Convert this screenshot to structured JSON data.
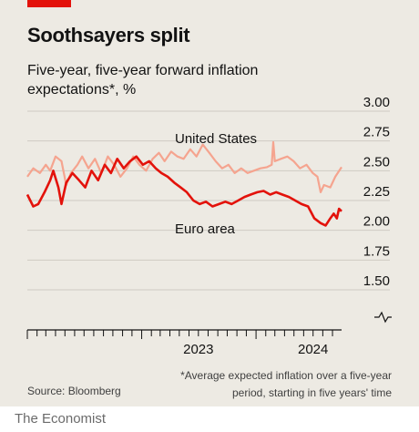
{
  "header": {
    "title": "Soothsayers split",
    "subtitle": "Five-year, five-year forward inflation expectations*, %"
  },
  "footer": {
    "source": "Source: Bloomberg",
    "footnote": "*Average expected inflation over a five-year period, starting in five years' time",
    "brand": "The Economist"
  },
  "colors": {
    "background": "#edeae3",
    "accent": "#e3120b",
    "us_line": "#f5a48f",
    "euro_line": "#e3120b",
    "grid": "#cfcbc3"
  },
  "chart_data": {
    "type": "line",
    "title": "Soothsayers split",
    "subtitle": "Five-year, five-year forward inflation expectations*, %",
    "xlabel": "",
    "ylabel": "",
    "x_ticks": [
      "2023",
      "2024"
    ],
    "y_ticks": [
      "3.00",
      "2.75",
      "2.50",
      "2.25",
      "2.00",
      "1.75",
      "1.50"
    ],
    "ylim": [
      1.5,
      3.0
    ],
    "xlim": [
      "2022-01-01",
      "2024-09-30"
    ],
    "grid": true,
    "axis_break_below": true,
    "series": [
      {
        "name": "United States",
        "color": "#f5a48f",
        "points": [
          [
            "2022-01-01",
            2.45
          ],
          [
            "2022-01-20",
            2.52
          ],
          [
            "2022-02-10",
            2.48
          ],
          [
            "2022-03-01",
            2.55
          ],
          [
            "2022-03-15",
            2.5
          ],
          [
            "2022-04-01",
            2.62
          ],
          [
            "2022-04-20",
            2.58
          ],
          [
            "2022-05-05",
            2.38
          ],
          [
            "2022-05-20",
            2.48
          ],
          [
            "2022-06-10",
            2.55
          ],
          [
            "2022-06-25",
            2.62
          ],
          [
            "2022-07-15",
            2.52
          ],
          [
            "2022-08-05",
            2.6
          ],
          [
            "2022-08-25",
            2.48
          ],
          [
            "2022-09-15",
            2.62
          ],
          [
            "2022-10-05",
            2.55
          ],
          [
            "2022-10-25",
            2.45
          ],
          [
            "2022-11-15",
            2.52
          ],
          [
            "2022-12-05",
            2.62
          ],
          [
            "2022-12-25",
            2.55
          ],
          [
            "2023-01-15",
            2.5
          ],
          [
            "2023-02-05",
            2.6
          ],
          [
            "2023-02-25",
            2.65
          ],
          [
            "2023-03-15",
            2.58
          ],
          [
            "2023-04-05",
            2.66
          ],
          [
            "2023-04-25",
            2.62
          ],
          [
            "2023-05-15",
            2.6
          ],
          [
            "2023-06-05",
            2.68
          ],
          [
            "2023-06-25",
            2.62
          ],
          [
            "2023-07-15",
            2.72
          ],
          [
            "2023-08-05",
            2.65
          ],
          [
            "2023-08-25",
            2.58
          ],
          [
            "2023-09-15",
            2.52
          ],
          [
            "2023-10-05",
            2.55
          ],
          [
            "2023-10-25",
            2.48
          ],
          [
            "2023-11-15",
            2.52
          ],
          [
            "2023-12-05",
            2.48
          ],
          [
            "2023-12-25",
            2.5
          ],
          [
            "2024-01-15",
            2.52
          ],
          [
            "2024-02-05",
            2.53
          ],
          [
            "2024-02-20",
            2.55
          ],
          [
            "2024-02-25",
            2.74
          ],
          [
            "2024-03-01",
            2.58
          ],
          [
            "2024-03-20",
            2.6
          ],
          [
            "2024-04-10",
            2.62
          ],
          [
            "2024-04-30",
            2.58
          ],
          [
            "2024-05-20",
            2.52
          ],
          [
            "2024-06-10",
            2.55
          ],
          [
            "2024-06-30",
            2.48
          ],
          [
            "2024-07-15",
            2.45
          ],
          [
            "2024-07-25",
            2.32
          ],
          [
            "2024-08-05",
            2.38
          ],
          [
            "2024-08-25",
            2.36
          ],
          [
            "2024-09-10",
            2.45
          ],
          [
            "2024-09-30",
            2.53
          ]
        ]
      },
      {
        "name": "Euro area",
        "color": "#e3120b",
        "points": [
          [
            "2022-01-01",
            2.3
          ],
          [
            "2022-01-20",
            2.2
          ],
          [
            "2022-02-05",
            2.22
          ],
          [
            "2022-02-25",
            2.32
          ],
          [
            "2022-03-15",
            2.42
          ],
          [
            "2022-03-25",
            2.5
          ],
          [
            "2022-04-10",
            2.36
          ],
          [
            "2022-04-20",
            2.22
          ],
          [
            "2022-05-05",
            2.4
          ],
          [
            "2022-05-25",
            2.48
          ],
          [
            "2022-06-15",
            2.42
          ],
          [
            "2022-07-05",
            2.36
          ],
          [
            "2022-07-25",
            2.5
          ],
          [
            "2022-08-15",
            2.42
          ],
          [
            "2022-09-05",
            2.55
          ],
          [
            "2022-09-25",
            2.48
          ],
          [
            "2022-10-15",
            2.6
          ],
          [
            "2022-11-05",
            2.52
          ],
          [
            "2022-11-25",
            2.58
          ],
          [
            "2022-12-15",
            2.62
          ],
          [
            "2023-01-05",
            2.55
          ],
          [
            "2023-01-25",
            2.58
          ],
          [
            "2023-02-15",
            2.52
          ],
          [
            "2023-03-05",
            2.48
          ],
          [
            "2023-03-25",
            2.45
          ],
          [
            "2023-04-15",
            2.4
          ],
          [
            "2023-05-05",
            2.36
          ],
          [
            "2023-05-25",
            2.32
          ],
          [
            "2023-06-15",
            2.25
          ],
          [
            "2023-07-05",
            2.22
          ],
          [
            "2023-07-25",
            2.24
          ],
          [
            "2023-08-15",
            2.2
          ],
          [
            "2023-09-05",
            2.22
          ],
          [
            "2023-09-25",
            2.24
          ],
          [
            "2023-10-15",
            2.22
          ],
          [
            "2023-11-05",
            2.25
          ],
          [
            "2023-11-25",
            2.28
          ],
          [
            "2023-12-15",
            2.3
          ],
          [
            "2024-01-05",
            2.32
          ],
          [
            "2024-01-25",
            2.33
          ],
          [
            "2024-02-15",
            2.3
          ],
          [
            "2024-03-05",
            2.32
          ],
          [
            "2024-03-25",
            2.3
          ],
          [
            "2024-04-15",
            2.28
          ],
          [
            "2024-05-05",
            2.25
          ],
          [
            "2024-05-25",
            2.22
          ],
          [
            "2024-06-15",
            2.2
          ],
          [
            "2024-07-05",
            2.1
          ],
          [
            "2024-07-25",
            2.06
          ],
          [
            "2024-08-10",
            2.04
          ],
          [
            "2024-08-25",
            2.1
          ],
          [
            "2024-09-05",
            2.14
          ],
          [
            "2024-09-15",
            2.1
          ],
          [
            "2024-09-22",
            2.18
          ],
          [
            "2024-09-30",
            2.16
          ]
        ]
      }
    ]
  }
}
